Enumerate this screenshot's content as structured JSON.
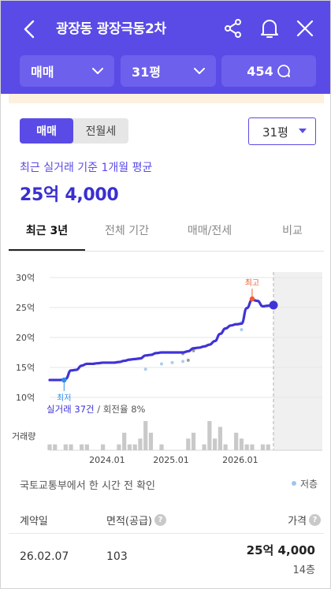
{
  "header": {
    "title": "광장동 광장극동2차",
    "icons": {
      "back": "chevron-left-icon",
      "share": "share-icon",
      "alert": "bell-icon",
      "close": "close-icon"
    },
    "bg_color": "#5a4be6"
  },
  "selectors": {
    "trade_type": "매매",
    "area": "31평",
    "comments": "454"
  },
  "toggle": {
    "options": [
      "매매",
      "전월세"
    ],
    "selected": "매매"
  },
  "area_dropdown": {
    "value": "31평"
  },
  "summary": {
    "caption": "최근 실거래 기준 1개월 평균",
    "price": "25억 4,000"
  },
  "period_tabs": [
    "최근 3년",
    "전체 기간",
    "매매/전세",
    "비교"
  ],
  "period_selected": "최근 3년",
  "chart_data": {
    "type": "line",
    "y_ticks": [
      "30억",
      "25억",
      "20억",
      "15억",
      "10억"
    ],
    "ylim": [
      10,
      30
    ],
    "x_ticks": [
      "2024.01",
      "2025.01",
      "2026.01"
    ],
    "max_label": "최고",
    "min_label": "최저",
    "stats_count": "실거래 37건",
    "stats_rate": "/ 회전율 8%",
    "volume_label": "거래량",
    "series": [
      {
        "values": [
          12.9,
          12.9,
          12.9,
          13.1,
          14.5,
          14.6,
          15.3,
          15.6,
          15.6,
          15.7,
          15.8,
          15.8,
          15.8,
          15.9,
          16.1,
          16.3,
          16.4,
          16.5,
          17.0,
          17.1,
          17.4,
          17.5,
          17.5,
          17.5,
          17.5,
          17.5,
          17.7,
          18.2,
          18.3,
          18.5,
          18.8,
          19.4,
          20.6,
          21.5,
          22.0,
          22.2,
          22.3,
          24.9,
          26.3,
          26.1,
          25.2,
          25.3,
          25.4
        ]
      }
    ],
    "scatter_points": [
      {
        "i": 18,
        "v": 14.7,
        "kind": "light"
      },
      {
        "i": 21,
        "v": 15.6,
        "kind": "light"
      },
      {
        "i": 23,
        "v": 15.8,
        "kind": "light"
      },
      {
        "i": 25,
        "v": 16.0,
        "kind": "light"
      },
      {
        "i": 25,
        "v": 17.3,
        "kind": "gray"
      },
      {
        "i": 26,
        "v": 16.2,
        "kind": "gray"
      },
      {
        "i": 27,
        "v": 17.8,
        "kind": "gray"
      },
      {
        "i": 36,
        "v": 21.3,
        "kind": "light"
      },
      {
        "i": 36,
        "v": 22.5,
        "kind": "light"
      }
    ],
    "volume": [
      1,
      1,
      0,
      1,
      1,
      0,
      1,
      1,
      0,
      0,
      1,
      0,
      0,
      1,
      3,
      1,
      1,
      2,
      5,
      3,
      0,
      1,
      0,
      0,
      0,
      0,
      2,
      3,
      0,
      1,
      5,
      2,
      4,
      1,
      0,
      3,
      2,
      1,
      1,
      0,
      1,
      1,
      0
    ],
    "colors": {
      "line": "#3f33d6",
      "max": "#f25a2c",
      "min": "#2f8ee6",
      "volume": "#c9c9c9"
    }
  },
  "source_note": "국토교통부에서 한 시간 전 확인",
  "legend_low": "저층",
  "table": {
    "headers": {
      "date": "계약일",
      "area": "면적(공급)",
      "price": "가격"
    },
    "rows": [
      {
        "date": "26.02.07",
        "area": "103",
        "price": "25억 4,000",
        "floor": "14층"
      }
    ]
  }
}
